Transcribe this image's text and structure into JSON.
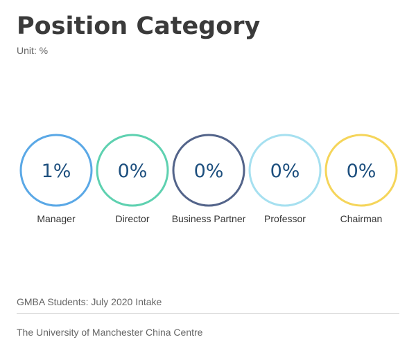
{
  "header": {
    "title": "Position Category",
    "unit": "Unit:  %"
  },
  "chart_data": {
    "type": "bar",
    "categories": [
      "Manager",
      "Director",
      "Business Partner",
      "Professor",
      "Chairman"
    ],
    "values": [
      1,
      0,
      0,
      0,
      0
    ],
    "labels": [
      "1%",
      "0%",
      "0%",
      "0%",
      "0%"
    ],
    "unit": "%",
    "colors": [
      "#5aa8e6",
      "#5ed1b0",
      "#53648a",
      "#a6e0f0",
      "#f5d55a"
    ],
    "value_text_color": "#1d4f7e"
  },
  "footer": {
    "line1": "GMBA Students: July 2020 Intake",
    "line2": "The University of Manchester China Centre"
  }
}
